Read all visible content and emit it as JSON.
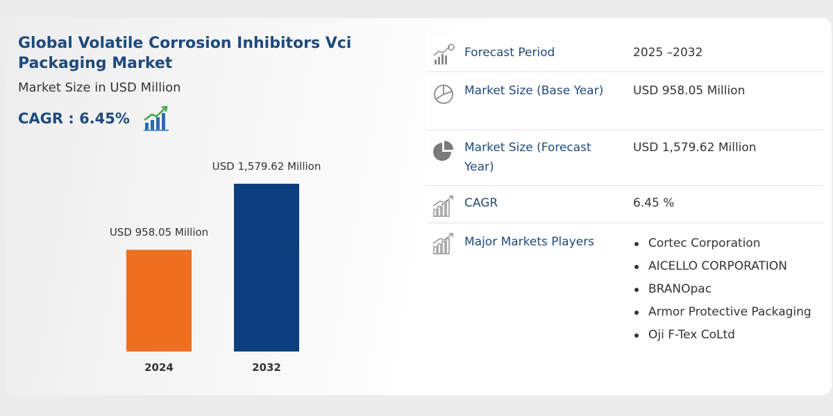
{
  "header": {
    "title": "Global Volatile Corrosion Inhibitors Vci Packaging Market",
    "subtitle": "Market Size in USD Million",
    "cagr_label": "CAGR : 6.45%"
  },
  "colors": {
    "title": "#1e4a7c",
    "bar_2024": "#f07022",
    "bar_2032": "#0d3f7f",
    "icon_grey": "#8a8a8a"
  },
  "chart_data": {
    "type": "bar",
    "categories": [
      "2024",
      "2032"
    ],
    "values": [
      958.05,
      1579.62
    ],
    "data_labels": [
      "USD 958.05 Million",
      "USD 1,579.62 Million"
    ],
    "colors": [
      "#f07022",
      "#0d3f7f"
    ],
    "ylim": [
      0,
      1579.62
    ]
  },
  "table": {
    "rows": [
      {
        "icon": "growth-chart-icon",
        "label": "Forecast Period",
        "value": "2025 –2032"
      },
      {
        "icon": "pie-chart-outline-icon",
        "label": "Market Size (Base Year)",
        "value": "USD 958.05 Million"
      },
      {
        "icon": "pie-chart-filled-icon",
        "label": "Market Size (Forecast Year)",
        "value": "USD 1,579.62 Million"
      },
      {
        "icon": "bar-growth-icon",
        "label": "CAGR",
        "value": "6.45 %"
      },
      {
        "icon": "bar-growth-icon",
        "label": "Major Markets Players",
        "value": ""
      }
    ],
    "players": [
      "Cortec Corporation",
      "AICELLO CORPORATION",
      "BRANOpac",
      "Armor Protective Packaging",
      "Oji F-Tex CoLtd"
    ]
  }
}
